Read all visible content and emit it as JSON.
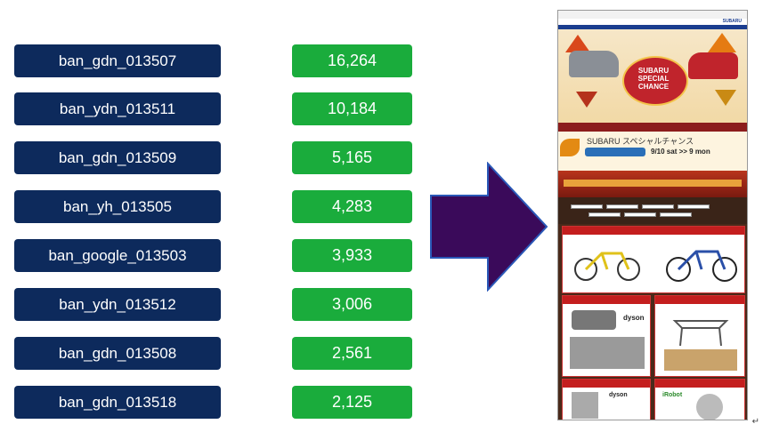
{
  "rows": [
    {
      "name": "ban_gdn_013507",
      "value": "16,264"
    },
    {
      "name": "ban_ydn_013511",
      "value": "10,184"
    },
    {
      "name": "ban_gdn_013509",
      "value": "5,165"
    },
    {
      "name": "ban_yh_013505",
      "value": "4,283"
    },
    {
      "name": "ban_google_013503",
      "value": "3,933"
    },
    {
      "name": "ban_ydn_013512",
      "value": "3,006"
    },
    {
      "name": "ban_gdn_013508",
      "value": "2,561"
    },
    {
      "name": "ban_gdn_013518",
      "value": "2,125"
    }
  ],
  "colors": {
    "name_pill": "#0d2a5c",
    "value_pill": "#1aac3c",
    "arrow_fill": "#3a0a5a",
    "arrow_stroke": "#2a58b8"
  },
  "screenshot": {
    "hero_title": "SUBARU SPECIAL CHANCE",
    "hero_subtitle": "SUBARU スペシャルチャンス",
    "date_text": "9/10 sat >> 9 mon",
    "brand": "SUBARU",
    "product_brand_1": "dyson",
    "product_brand_2": "iRobot"
  },
  "trailing_mark": "↵"
}
